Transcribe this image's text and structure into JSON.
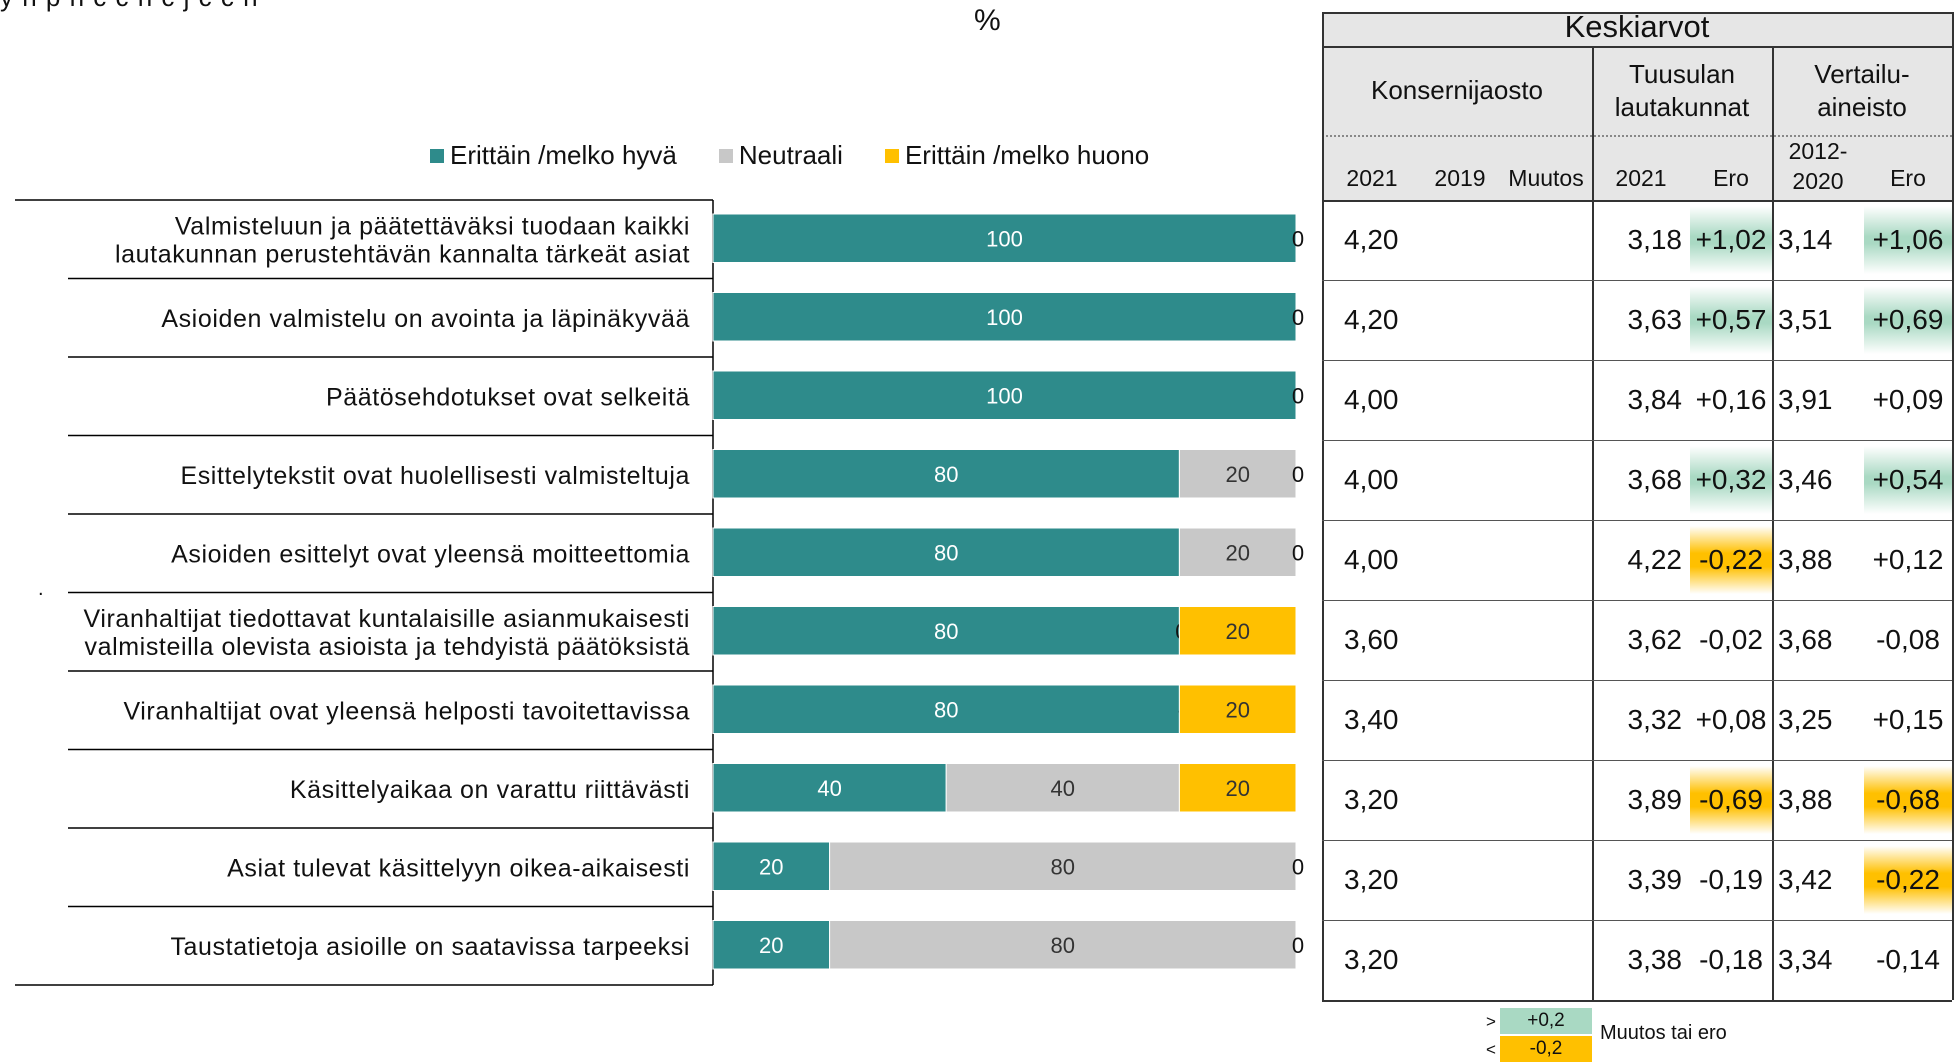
{
  "page": {
    "top_caption": "y   n  p     n    c     c       n       c      j       c     c   n",
    "percent_label": "%",
    "dot": "."
  },
  "chart_data": {
    "type": "bar",
    "stacked": true,
    "orientation": "horizontal",
    "xlim": [
      0,
      100
    ],
    "categories": [
      "Valmisteluun ja päätettäväksi tuodaan kaikki lautakunnan perustehtävän kannalta tärkeät asiat",
      "Asioiden valmistelu on avointa ja läpinäkyvää",
      "Päätösehdotukset ovat selkeitä",
      "Esittelytekstit ovat huolellisesti valmisteltuja",
      "Asioiden esittelyt ovat yleensä moitteettomia",
      "Viranhaltijat tiedottavat kuntalaisille asianmukaisesti valmisteilla olevista asioista ja tehdyistä päätöksistä",
      "Viranhaltijat ovat yleensä helposti tavoitettavissa",
      "Käsittelyaikaa on varattu riittävästi",
      "Asiat tulevat käsittelyyn oikea-aikaisesti",
      "Taustatietoja asioille on saatavissa tarpeeksi"
    ],
    "category_lines": [
      [
        "Valmisteluun ja päätettäväksi tuodaan kaikki",
        "lautakunnan perustehtävän kannalta tärkeät asiat"
      ],
      [
        "Asioiden valmistelu on avointa ja läpinäkyvää"
      ],
      [
        "Päätösehdotukset ovat selkeitä"
      ],
      [
        "Esittelytekstit ovat huolellisesti valmisteltuja"
      ],
      [
        "Asioiden esittelyt ovat yleensä moitteettomia"
      ],
      [
        "Viranhaltijat tiedottavat kuntalaisille asianmukaisesti",
        "valmisteilla olevista asioista ja tehdyistä päätöksistä"
      ],
      [
        "Viranhaltijat ovat yleensä helposti tavoitettavissa"
      ],
      [
        "Käsittelyaikaa on varattu riittävästi"
      ],
      [
        "Asiat tulevat käsittelyyn oikea-aikaisesti"
      ],
      [
        "Taustatietoja asioille on saatavissa tarpeeksi"
      ]
    ],
    "series": [
      {
        "name": "Erittäin /melko hyvä",
        "color": "#2E8B8B",
        "values": [
          100,
          100,
          100,
          80,
          80,
          80,
          80,
          40,
          20,
          20
        ],
        "labels": [
          "100",
          "100",
          "100",
          "80",
          "80",
          "80",
          "80",
          "40",
          "20",
          "20"
        ]
      },
      {
        "name": "Neutraali",
        "color": "#C8C8C8",
        "values": [
          0,
          0,
          0,
          20,
          20,
          0,
          0,
          40,
          80,
          80
        ],
        "labels": [
          "",
          "",
          "",
          "20",
          "20",
          "0",
          "-",
          "40",
          "80",
          "80"
        ]
      },
      {
        "name": "Erittäin /melko huono",
        "color": "#FFC000",
        "values": [
          0,
          0,
          0,
          0,
          0,
          20,
          20,
          20,
          0,
          0
        ],
        "labels": [
          "0",
          "0",
          "0",
          "0",
          "0",
          "20",
          "20",
          "20",
          "0",
          "0"
        ]
      }
    ],
    "legend_position": "top"
  },
  "table": {
    "title": "Keskiarvot",
    "group_konserni": "Konsernijaosto",
    "group_tuusula_lines": [
      "Tuusulan",
      "lautakunnat"
    ],
    "group_vertailu_lines": [
      "Vertailu-",
      "aineisto"
    ],
    "col_2021": "2021",
    "col_2019": "2019",
    "col_muutos": "Muutos",
    "col_t2021": "2021",
    "col_ero1": "Ero",
    "col_vertailu_year_lines": [
      "2012-",
      "2020"
    ],
    "col_ero2": "Ero",
    "rows": [
      {
        "k2021": "4,20",
        "k2019": "",
        "muutos": "",
        "t2021": "3,18",
        "ero1": "+1,02",
        "ero1_hl": "green",
        "v": "3,14",
        "ero2": "+1,06",
        "ero2_hl": "green"
      },
      {
        "k2021": "4,20",
        "k2019": "",
        "muutos": "",
        "t2021": "3,63",
        "ero1": "+0,57",
        "ero1_hl": "green",
        "v": "3,51",
        "ero2": "+0,69",
        "ero2_hl": "green"
      },
      {
        "k2021": "4,00",
        "k2019": "",
        "muutos": "",
        "t2021": "3,84",
        "ero1": "+0,16",
        "ero1_hl": "",
        "v": "3,91",
        "ero2": "+0,09",
        "ero2_hl": ""
      },
      {
        "k2021": "4,00",
        "k2019": "",
        "muutos": "",
        "t2021": "3,68",
        "ero1": "+0,32",
        "ero1_hl": "green",
        "v": "3,46",
        "ero2": "+0,54",
        "ero2_hl": "green"
      },
      {
        "k2021": "4,00",
        "k2019": "",
        "muutos": "",
        "t2021": "4,22",
        "ero1": "-0,22",
        "ero1_hl": "yellow",
        "v": "3,88",
        "ero2": "+0,12",
        "ero2_hl": ""
      },
      {
        "k2021": "3,60",
        "k2019": "",
        "muutos": "",
        "t2021": "3,62",
        "ero1": "-0,02",
        "ero1_hl": "",
        "v": "3,68",
        "ero2": "-0,08",
        "ero2_hl": ""
      },
      {
        "k2021": "3,40",
        "k2019": "",
        "muutos": "",
        "t2021": "3,32",
        "ero1": "+0,08",
        "ero1_hl": "",
        "v": "3,25",
        "ero2": "+0,15",
        "ero2_hl": ""
      },
      {
        "k2021": "3,20",
        "k2019": "",
        "muutos": "",
        "t2021": "3,89",
        "ero1": "-0,69",
        "ero1_hl": "yellow",
        "v": "3,88",
        "ero2": "-0,68",
        "ero2_hl": "yellow"
      },
      {
        "k2021": "3,20",
        "k2019": "",
        "muutos": "",
        "t2021": "3,39",
        "ero1": "-0,19",
        "ero1_hl": "",
        "v": "3,42",
        "ero2": "-0,22",
        "ero2_hl": "yellow"
      },
      {
        "k2021": "3,20",
        "k2019": "",
        "muutos": "",
        "t2021": "3,38",
        "ero1": "-0,18",
        "ero1_hl": "",
        "v": "3,34",
        "ero2": "-0,14",
        "ero2_hl": ""
      }
    ]
  },
  "key": {
    "gt_symbol": ">",
    "lt_symbol": "<",
    "gt_value": "+0,2",
    "lt_value": "-0,2",
    "label": "Muutos tai ero",
    "green": "#A9D9C3",
    "yellow": "#FFC000"
  }
}
